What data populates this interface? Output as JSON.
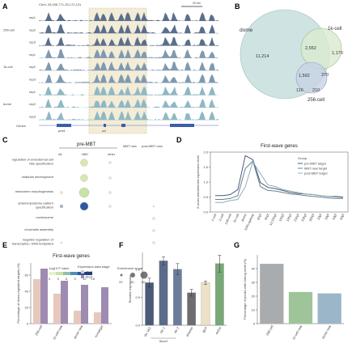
{
  "panels": {
    "A": {
      "letter": "A",
      "coord": "Chr4: 25,036,771-25,172,101",
      "scale": "20 kb",
      "tracks": [
        {
          "label": "rep1",
          "group": ""
        },
        {
          "label": "rep2",
          "group": "256-cell"
        },
        {
          "label": "rep3",
          "group": ""
        },
        {
          "label": "rep1",
          "group": ""
        },
        {
          "label": "rep2",
          "group": "1k-cell"
        },
        {
          "label": "rep3",
          "group": ""
        },
        {
          "label": "rep1",
          "group": ""
        },
        {
          "label": "rep2",
          "group": "dome"
        },
        {
          "label": "rep3",
          "group": ""
        }
      ],
      "genes_label": "Genes",
      "genes": [
        "pmt1",
        "szl",
        "szl3"
      ]
    },
    "B": {
      "letter": "B",
      "sets": [
        "dome",
        "1k-cell",
        "256-cell"
      ],
      "counts": [
        "11,214",
        "2,552",
        "1,170",
        "1,592",
        "370",
        "116",
        "210"
      ]
    },
    "C": {
      "letter": "C",
      "header_pre": "pre-MBT",
      "columns": [
        "All",
        "NBC",
        "other",
        "MBT new",
        "post-MBT new"
      ],
      "terms": [
        "regulation of endodermal cell fate specification",
        "midbrain development",
        "mesoderm morphogenesis",
        "anterior/posterior pattern specification",
        "nucleosome",
        "chromatin assembly",
        "negative regulation of transcription, DNA-templated"
      ],
      "colorbar_label": "-log10 P value",
      "colorbar_ticks": [
        "0",
        "3",
        "6",
        "9",
        "12",
        "15"
      ],
      "size_label": "Enrichment score",
      "size_ticks": [
        "20",
        "40",
        "60"
      ]
    },
    "D": {
      "letter": "D"
    },
    "E": {
      "letter": "E"
    },
    "F": {
      "letter": "F"
    },
    "G": {
      "letter": "G"
    }
  },
  "chart_data": [
    {
      "panel": "D",
      "type": "line",
      "title": "First-wave genes",
      "ylabel": "Z-score-transformed expression level",
      "xlabel": "",
      "legend_title": "Group",
      "legend_position": "top-right",
      "categories": [
        "1-cell",
        "2-cell",
        "128-cell",
        "1k-cell",
        "dome",
        "50%-epiboly",
        "6hpf",
        "8hpf",
        "10.33hpf",
        "16hpf",
        "19hpf",
        "24hpf",
        "30hpf",
        "36hpf",
        "2dpf",
        "3dpf",
        "4dpf",
        "5dpf"
      ],
      "ylim": [
        0,
        2
      ],
      "yticks": [
        0,
        0.5,
        1.0,
        1.5,
        2.0
      ],
      "series": [
        {
          "name": "pre-MBT target",
          "color": "#4a5a78",
          "values": [
            0.55,
            0.55,
            0.58,
            0.75,
            1.88,
            1.75,
            0.98,
            0.82,
            0.78,
            0.72,
            0.65,
            0.62,
            0.6,
            0.58,
            0.55,
            0.52,
            0.52,
            0.5
          ]
        },
        {
          "name": "MBT new target",
          "color": "#6d7f95",
          "values": [
            0.42,
            0.42,
            0.45,
            0.55,
            1.45,
            1.7,
            0.85,
            0.72,
            0.7,
            0.65,
            0.6,
            0.58,
            0.55,
            0.52,
            0.5,
            0.47,
            0.45,
            0.45
          ]
        },
        {
          "name": "post-MBT target",
          "color": "#8cb0b8",
          "values": [
            0.32,
            0.32,
            0.38,
            0.42,
            0.85,
            1.68,
            1.28,
            0.9,
            0.85,
            0.75,
            0.7,
            0.65,
            0.6,
            0.58,
            0.55,
            0.52,
            0.5,
            0.48
          ]
        }
      ]
    },
    {
      "panel": "E",
      "type": "bar",
      "title": "First-wave genes",
      "ylabel": "Percentage of down-regulated targets (%)",
      "legend_title": "Expression data stage",
      "legend_position": "top-right",
      "categories": [
        "256-cell",
        "1k-cell new",
        "dome new",
        "nontarget"
      ],
      "ylim": [
        0,
        75
      ],
      "yticks": [
        0,
        20,
        40,
        60
      ],
      "series": [
        {
          "name": "4hpf",
          "color": "#e6c8bc",
          "values": [
            55,
            37,
            16,
            14
          ]
        },
        {
          "name": "6hpf",
          "color": "#9e8bb2",
          "values": [
            68,
            53,
            48,
            45
          ]
        }
      ]
    },
    {
      "panel": "F",
      "type": "bar",
      "ylabel": "Relative expression",
      "categories": [
        "sle 1&2",
        "sle 1",
        "sle 2",
        "dhamie",
        "lgh4",
        "actha"
      ],
      "group_label": "Ifoxc2",
      "ylim": [
        0,
        1.3
      ],
      "yticks": [
        0,
        0.5,
        1.0
      ],
      "colors": [
        "#4a5a78",
        "#5b6b8a",
        "#6b7d9a",
        "#6d6d6d",
        "#ede0c6",
        "#78a878"
      ],
      "values": [
        0.76,
        1.15,
        1.0,
        0.58,
        0.76,
        1.1
      ],
      "errors": [
        0.08,
        0.07,
        0.1,
        0.06,
        0.03,
        0.15
      ]
    },
    {
      "panel": "G",
      "type": "bar",
      "ylabel": "Percentage of peaks with Nanog motif (%)",
      "categories": [
        "256-cell",
        "1k-cell new",
        "dome new"
      ],
      "ylim": [
        0,
        50
      ],
      "yticks": [
        0,
        10,
        20,
        30,
        40
      ],
      "colors": [
        "#a8acaf",
        "#9fc49a",
        "#9ab6c8"
      ],
      "values": [
        43.5,
        23,
        22
      ]
    }
  ]
}
